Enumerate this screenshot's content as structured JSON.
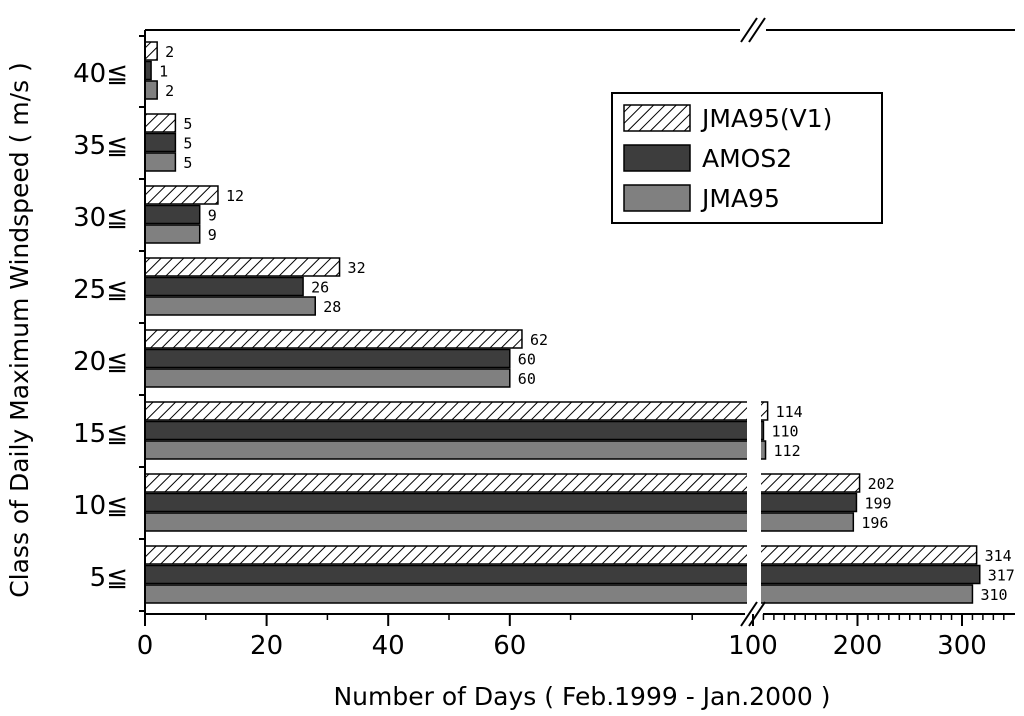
{
  "chart_data": {
    "type": "bar",
    "orientation": "horizontal",
    "categories": [
      "40≦",
      "35≦",
      "30≦",
      "25≦",
      "20≦",
      "15≦",
      "10≦",
      "5≦"
    ],
    "series": [
      {
        "name": "JMA95(V1)",
        "values": [
          2,
          5,
          12,
          32,
          62,
          114,
          202,
          314
        ]
      },
      {
        "name": "AMOS2",
        "values": [
          1,
          5,
          9,
          26,
          60,
          110,
          199,
          317
        ]
      },
      {
        "name": "JMA95",
        "values": [
          2,
          5,
          9,
          28,
          60,
          112,
          196,
          310
        ]
      }
    ],
    "xlabel": "Number of Days ( Feb.1999 - Jan.2000 )",
    "ylabel": "Class of Daily Maximum Windspeed ( m/s )",
    "x_axis": {
      "broken": true,
      "linear_segment": {
        "range": [
          0,
          100
        ],
        "ticks": [
          0,
          20,
          40,
          60
        ]
      },
      "compressed_segment": {
        "range": [
          100,
          350
        ],
        "ticks": [
          100,
          200,
          300
        ]
      }
    },
    "tick_labels": [
      "0",
      "20",
      "40",
      "60",
      "100",
      "200",
      "300"
    ],
    "legend_position": "top-right",
    "grid": false,
    "colors": {
      "JMA95(V1)": "hatched",
      "AMOS2": "#3d3d3d",
      "JMA95": "#808080"
    }
  }
}
